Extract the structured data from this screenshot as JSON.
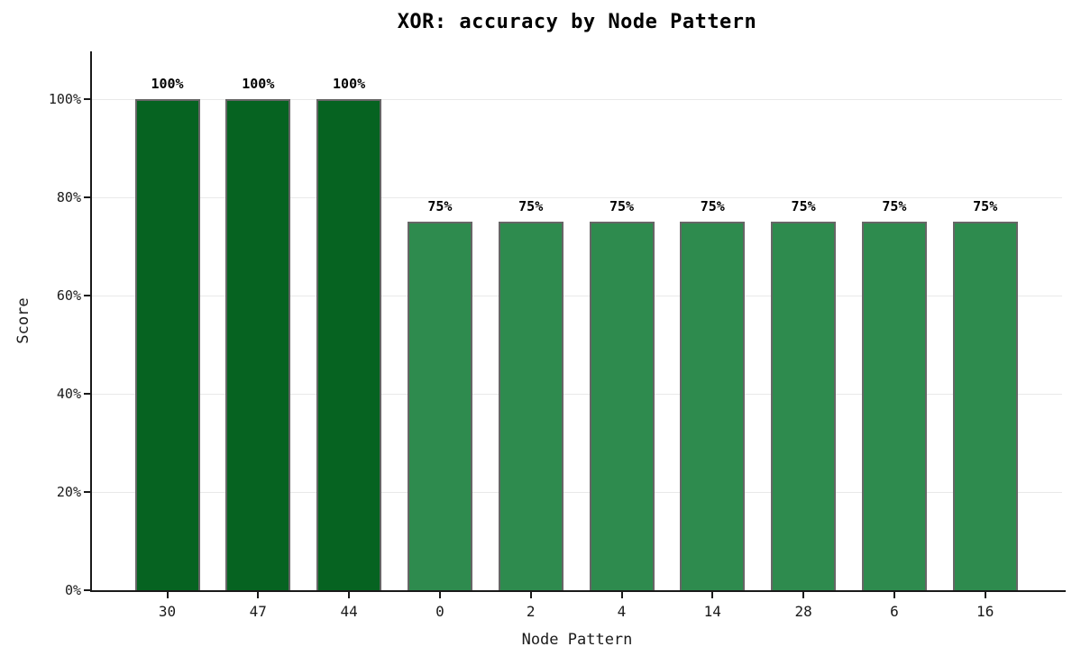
{
  "chart_data": {
    "type": "bar",
    "title": "XOR: accuracy by Node Pattern",
    "xlabel": "Node Pattern",
    "ylabel": "Score",
    "categories": [
      "30",
      "47",
      "44",
      "0",
      "2",
      "4",
      "14",
      "28",
      "6",
      "16"
    ],
    "values": [
      100,
      100,
      100,
      75,
      75,
      75,
      75,
      75,
      75,
      75
    ],
    "bar_labels": [
      "100%",
      "100%",
      "100%",
      "75%",
      "75%",
      "75%",
      "75%",
      "75%",
      "75%",
      "75%"
    ],
    "bar_colors": [
      "#066321",
      "#066321",
      "#066321",
      "#2e8b4e",
      "#2e8b4e",
      "#2e8b4e",
      "#2e8b4e",
      "#2e8b4e",
      "#2e8b4e",
      "#2e8b4e"
    ],
    "yticks": [
      0,
      20,
      40,
      60,
      80,
      100
    ],
    "ytick_labels": [
      "0%",
      "20%",
      "40%",
      "60%",
      "80%",
      "100%"
    ],
    "ylim": [
      0,
      110
    ],
    "grid": "horizontal",
    "legend": "none",
    "colors": {
      "bar_high": "#066321",
      "bar_low": "#2e8b4e",
      "bar_edge": "#666666",
      "axis": "#1a1a1a",
      "gridline": "#e9e9e9",
      "background": "#ffffff",
      "text": "#000000"
    }
  }
}
